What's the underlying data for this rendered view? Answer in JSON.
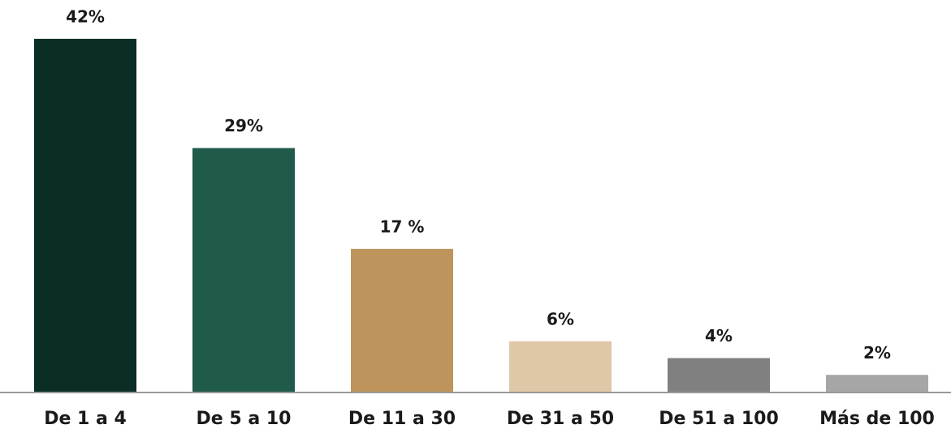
{
  "chart_data": {
    "type": "bar",
    "categories": [
      "De 1 a 4",
      "De 5 a 10",
      "De 11 a 30",
      "De 31 a 50",
      "De 51 a 100",
      "Más de 100"
    ],
    "values": [
      42,
      29,
      17,
      6,
      4,
      2
    ],
    "value_labels": [
      "42%",
      "29%",
      "17 %",
      "6%",
      "4%",
      "2%"
    ],
    "colors": [
      "#0a2e26",
      "#1f5a4b",
      "#bd955c",
      "#dfc8a7",
      "#808080",
      "#a6a6a6"
    ]
  }
}
